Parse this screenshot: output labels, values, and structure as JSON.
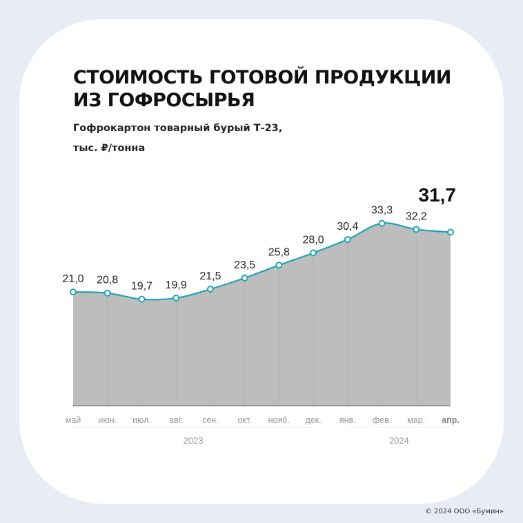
{
  "title_lines": [
    "СТОИМОСТЬ ГОТОВОЙ ПРОДУКЦИИ",
    "ИЗ ГОФРОСЫРЬЯ"
  ],
  "subtitle": "Гофрокартон товарный бурый Т-23,",
  "unit": "тыс. ₽/тонна",
  "footer": "© 2024 ООО «Бумин»",
  "chart_data": {
    "type": "area",
    "categories": [
      "май",
      "июн.",
      "июл.",
      "авг.",
      "сен.",
      "окт.",
      "нояб.",
      "дек.",
      "янв.",
      "фев.",
      "мар.",
      "апр."
    ],
    "values": [
      21.0,
      20.8,
      19.7,
      19.9,
      21.5,
      23.5,
      25.8,
      28.0,
      30.4,
      33.3,
      32.2,
      31.7
    ],
    "value_labels": [
      "21,0",
      "20,8",
      "19,7",
      "19,9",
      "21,5",
      "23,5",
      "25,8",
      "28,0",
      "30,4",
      "33,3",
      "32,2",
      "31,7"
    ],
    "year_groups": [
      {
        "label": "2023",
        "from": 0,
        "to": 7
      },
      {
        "label": "2024",
        "from": 8,
        "to": 11
      }
    ],
    "highlight_last": true,
    "colors": {
      "line": "#1fa3b5",
      "fill": "#bdbdbd",
      "axis_label": "#9a9a9a",
      "highlight": "#111111"
    },
    "grid": "vertical",
    "ylim": [
      0,
      34
    ]
  }
}
